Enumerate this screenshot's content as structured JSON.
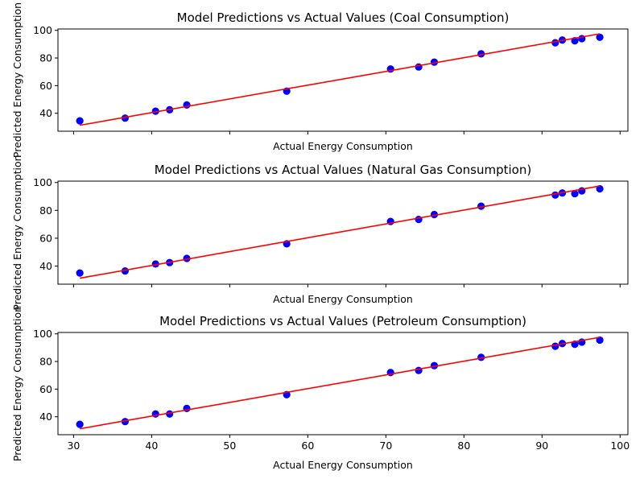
{
  "chart_data": [
    {
      "type": "scatter",
      "title": "Model Predictions vs Actual Values (Coal Consumption)",
      "xlabel": "Actual Energy Consumption",
      "ylabel": "Predicted Energy Consumption",
      "xlim": [
        28,
        101
      ],
      "ylim": [
        27,
        101
      ],
      "x_ticks": [
        30,
        40,
        50,
        60,
        70,
        80,
        90,
        100
      ],
      "y_ticks": [
        40,
        60,
        80,
        100
      ],
      "show_x_tick_labels": false,
      "grid": false,
      "series": [
        {
          "kind": "scatter",
          "color": "#0000ff",
          "points": [
            [
              30.8,
              34.5
            ],
            [
              36.6,
              36.5
            ],
            [
              40.5,
              41.5
            ],
            [
              42.3,
              42.5
            ],
            [
              44.5,
              46.0
            ],
            [
              57.3,
              56.0
            ],
            [
              70.6,
              72.0
            ],
            [
              74.2,
              73.5
            ],
            [
              76.2,
              77.0
            ],
            [
              82.2,
              83.0
            ],
            [
              91.7,
              91.0
            ],
            [
              92.6,
              93.0
            ],
            [
              94.2,
              92.5
            ],
            [
              95.1,
              94.0
            ],
            [
              97.4,
              95.0
            ]
          ]
        },
        {
          "kind": "line",
          "color": "#ff0000",
          "points": [
            [
              30.8,
              31.3
            ],
            [
              97.4,
              97.5
            ]
          ]
        }
      ]
    },
    {
      "type": "scatter",
      "title": "Model Predictions vs Actual Values (Natural Gas Consumption)",
      "xlabel": "Actual Energy Consumption",
      "ylabel": "Predicted Energy Consumption",
      "xlim": [
        28,
        101
      ],
      "ylim": [
        27,
        101
      ],
      "x_ticks": [
        30,
        40,
        50,
        60,
        70,
        80,
        90,
        100
      ],
      "y_ticks": [
        40,
        60,
        80,
        100
      ],
      "show_x_tick_labels": false,
      "grid": false,
      "series": [
        {
          "kind": "scatter",
          "color": "#0000ff",
          "points": [
            [
              30.8,
              35.0
            ],
            [
              36.6,
              36.5
            ],
            [
              40.5,
              41.5
            ],
            [
              42.3,
              42.5
            ],
            [
              44.5,
              45.5
            ],
            [
              57.3,
              56.0
            ],
            [
              70.6,
              72.0
            ],
            [
              74.2,
              73.5
            ],
            [
              76.2,
              77.0
            ],
            [
              82.2,
              83.0
            ],
            [
              91.7,
              91.0
            ],
            [
              92.6,
              92.5
            ],
            [
              94.2,
              92.0
            ],
            [
              95.1,
              94.0
            ],
            [
              97.4,
              95.5
            ]
          ]
        },
        {
          "kind": "line",
          "color": "#ff0000",
          "points": [
            [
              30.8,
              31.3
            ],
            [
              97.4,
              97.5
            ]
          ]
        }
      ]
    },
    {
      "type": "scatter",
      "title": "Model Predictions vs Actual Values (Petroleum Consumption)",
      "xlabel": "Actual Energy Consumption",
      "ylabel": "Predicted Energy Consumption",
      "xlim": [
        28,
        101
      ],
      "ylim": [
        27,
        101
      ],
      "x_ticks": [
        30,
        40,
        50,
        60,
        70,
        80,
        90,
        100
      ],
      "y_ticks": [
        40,
        60,
        80,
        100
      ],
      "show_x_tick_labels": true,
      "grid": false,
      "series": [
        {
          "kind": "scatter",
          "color": "#0000ff",
          "points": [
            [
              30.8,
              34.5
            ],
            [
              36.6,
              36.5
            ],
            [
              40.5,
              42.0
            ],
            [
              42.3,
              42.0
            ],
            [
              44.5,
              46.0
            ],
            [
              57.3,
              56.0
            ],
            [
              70.6,
              72.0
            ],
            [
              74.2,
              73.5
            ],
            [
              76.2,
              77.0
            ],
            [
              82.2,
              83.0
            ],
            [
              91.7,
              91.0
            ],
            [
              92.6,
              93.0
            ],
            [
              94.2,
              92.5
            ],
            [
              95.1,
              94.0
            ],
            [
              97.4,
              95.5
            ]
          ]
        },
        {
          "kind": "line",
          "color": "#ff0000",
          "points": [
            [
              30.8,
              31.3
            ],
            [
              97.4,
              97.5
            ]
          ]
        }
      ]
    }
  ]
}
